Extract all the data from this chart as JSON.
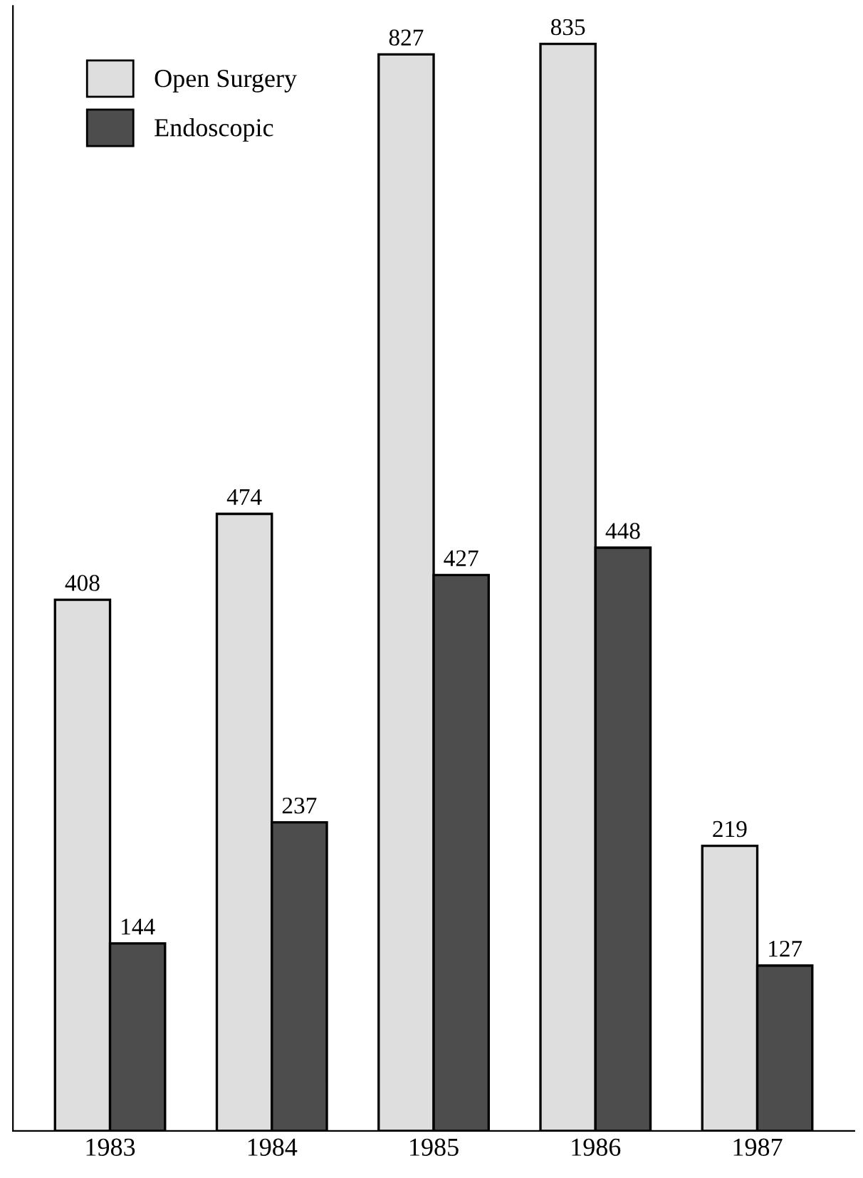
{
  "chart_data": {
    "type": "bar",
    "categories": [
      "1983",
      "1984",
      "1985",
      "1986",
      "1987"
    ],
    "series": [
      {
        "name": "Open Surgery",
        "color": "#dedede",
        "values": [
          408,
          474,
          827,
          835,
          219
        ]
      },
      {
        "name": "Endoscopic",
        "color": "#4d4d4d",
        "values": [
          144,
          237,
          427,
          448,
          127
        ]
      }
    ],
    "data_labels": true,
    "legend": "top left",
    "grid": false
  }
}
